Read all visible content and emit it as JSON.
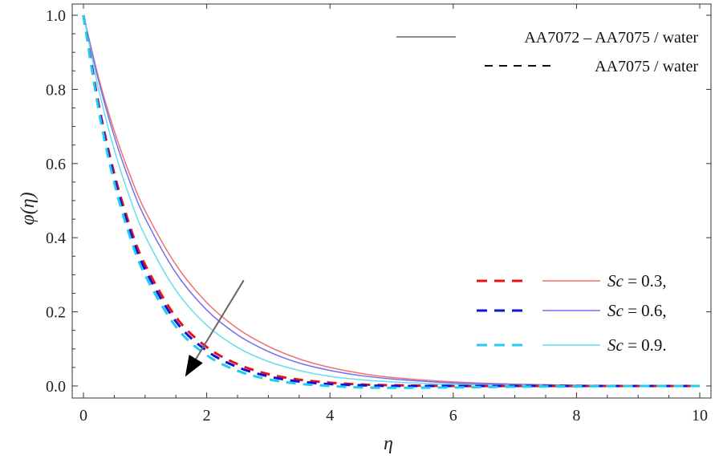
{
  "chart_data": {
    "type": "line",
    "title": "",
    "xlabel": "η",
    "ylabel": "φ(η)",
    "xlim": [
      0,
      10
    ],
    "ylim": [
      -0.01,
      1.03
    ],
    "xticks": [
      "0",
      "2",
      "4",
      "6",
      "8",
      "10"
    ],
    "yticks": [
      "0.0",
      "0.2",
      "0.4",
      "0.6",
      "0.8",
      "1.0"
    ],
    "grid": false,
    "x": [
      0,
      0.25,
      0.5,
      0.75,
      1,
      1.5,
      2,
      2.5,
      3,
      3.5,
      4,
      4.5,
      5,
      6,
      7,
      8,
      9,
      10
    ],
    "series": [
      {
        "name": "Sc = 0.3, AA7072 – AA7075 / water",
        "color": "#f07070",
        "dash": "solid",
        "values": [
          1.0,
          0.829,
          0.688,
          0.571,
          0.473,
          0.327,
          0.225,
          0.155,
          0.107,
          0.073,
          0.05,
          0.034,
          0.023,
          0.011,
          0.005,
          0.002,
          0.001,
          0.0
        ]
      },
      {
        "name": "Sc = 0.6, AA7072 – AA7075 / water",
        "color": "#7070ee",
        "dash": "solid",
        "values": [
          1.0,
          0.821,
          0.673,
          0.552,
          0.453,
          0.305,
          0.205,
          0.138,
          0.093,
          0.062,
          0.042,
          0.028,
          0.019,
          0.008,
          0.004,
          0.002,
          0.001,
          0.0
        ]
      },
      {
        "name": "Sc = 0.9, AA7072 – AA7075 / water",
        "color": "#66ddee",
        "dash": "solid",
        "values": [
          1.0,
          0.798,
          0.637,
          0.509,
          0.405,
          0.258,
          0.164,
          0.104,
          0.066,
          0.042,
          0.026,
          0.017,
          0.011,
          0.004,
          0.002,
          0.001,
          0.0,
          0.0
        ]
      },
      {
        "name": "Sc = 0.3, AA7075 / water",
        "color": "#ee1111",
        "dash": "dashed",
        "values": [
          1.0,
          0.757,
          0.573,
          0.433,
          0.327,
          0.186,
          0.105,
          0.059,
          0.032,
          0.017,
          0.009,
          0.004,
          0.002,
          0.0,
          0.0,
          0.0,
          0.0,
          0.0
        ]
      },
      {
        "name": "Sc = 0.6, AA7075 / water",
        "color": "#1111dd",
        "dash": "dashed",
        "values": [
          1.0,
          0.749,
          0.561,
          0.42,
          0.314,
          0.174,
          0.095,
          0.051,
          0.026,
          0.012,
          0.005,
          0.002,
          0.0,
          0.0,
          0.0,
          0.0,
          0.0,
          0.0
        ]
      },
      {
        "name": "Sc = 0.9, AA7075 / water",
        "color": "#22ccee",
        "dash": "dashed",
        "values": [
          1.0,
          0.741,
          0.548,
          0.405,
          0.299,
          0.16,
          0.083,
          0.041,
          0.018,
          0.006,
          0.0,
          -0.004,
          -0.005,
          -0.004,
          -0.002,
          -0.001,
          0.0,
          0.0
        ]
      }
    ],
    "legend_style": {
      "location": "top-right",
      "entries": [
        {
          "label": "AA7072 – AA7075 / water",
          "color": "#666666",
          "dash": "solid"
        },
        {
          "label": "AA7075 / water",
          "color": "#111111",
          "dash": "dashed"
        }
      ]
    },
    "legend_sc": {
      "location": "bottom-right",
      "entries": [
        {
          "label_prefix": "Sc",
          "label_suffix": " = 0.3,",
          "dash_color": "#ee1111",
          "solid_color": "#f07070"
        },
        {
          "label_prefix": "Sc",
          "label_suffix": " = 0.6,",
          "dash_color": "#1111dd",
          "solid_color": "#7070ee"
        },
        {
          "label_prefix": "Sc",
          "label_suffix": " = 0.9.",
          "dash_color": "#22ccee",
          "solid_color": "#66ddee"
        }
      ]
    },
    "annotation": {
      "type": "arrow",
      "meaning": "increasing Sc",
      "from": [
        2.6,
        0.285
      ],
      "to": [
        1.65,
        0.025
      ],
      "color": "#666666"
    }
  }
}
